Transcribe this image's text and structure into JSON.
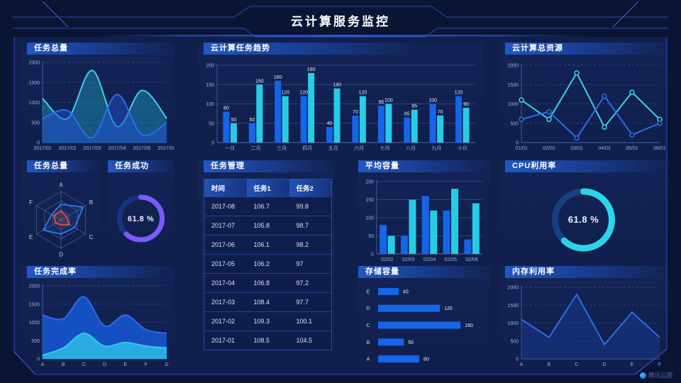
{
  "header": {
    "title": "云计算服务监控"
  },
  "watermark": {
    "label": "腾讯云图"
  },
  "panels": {
    "task_total": {
      "title": "任务总量"
    },
    "task_trend": {
      "title": "云计算任务趋势"
    },
    "cloud_resources": {
      "title": "云计算总资源"
    },
    "task_radar": {
      "title": "任务总量"
    },
    "task_success": {
      "title": "任务成功"
    },
    "task_table": {
      "title": "任务管理"
    },
    "avg_capacity": {
      "title": "平均容量"
    },
    "cpu_usage": {
      "title": "CPU利用率"
    },
    "completion_rate": {
      "title": "任务完成率"
    },
    "storage": {
      "title": "存储容量"
    },
    "memory_usage": {
      "title": "内存利用率"
    }
  },
  "table": {
    "headers": [
      "时间",
      "任务1",
      "任务2"
    ],
    "rows": [
      [
        "2017-08",
        "106.7",
        "99.8"
      ],
      [
        "2017-07",
        "105.8",
        "98.7"
      ],
      [
        "2017-06",
        "106.1",
        "98.2"
      ],
      [
        "2017-05",
        "106.2",
        "97"
      ],
      [
        "2017-04",
        "106.8",
        "97.2"
      ],
      [
        "2017-03",
        "108.4",
        "97.7"
      ],
      [
        "2017-02",
        "109.3",
        "100.1"
      ],
      [
        "2017-01",
        "108.5",
        "104.5"
      ]
    ]
  },
  "colors": {
    "bar_blue": "#1565e8",
    "bar_cyan": "#27cbe6",
    "line_blue": "#2e6de8",
    "line_cyan": "#3bd4e4",
    "gauge_purple": "#7c5afc",
    "gauge_cyan": "#2bd5e8",
    "radar_red": "#f0502e"
  },
  "chart_data": [
    {
      "id": "task-total-trend",
      "type": "area",
      "title": "任务总量",
      "smooth": true,
      "dash": true,
      "ml": 30,
      "x": [
        "2017/01",
        "2017/02",
        "2017/03",
        "2017/04",
        "2017/05",
        "2017/06"
      ],
      "series": [
        {
          "name": "series-cyan",
          "color": "#3bd4e4",
          "fill": "rgba(34,150,196,0.45)",
          "values": [
            1100,
            600,
            1800,
            400,
            1300,
            600
          ]
        },
        {
          "name": "series-blue",
          "color": "#2e6de8",
          "fill": "rgba(28,82,205,0.5)",
          "values": [
            600,
            800,
            120,
            1200,
            200,
            500
          ]
        }
      ],
      "ylim": [
        0,
        2000
      ],
      "yticks": [
        0,
        500,
        1000,
        1500,
        2000
      ]
    },
    {
      "id": "task-trend-bars",
      "type": "bar",
      "title": "云计算任务趋势",
      "labels": true,
      "bw": 9,
      "categories": [
        "一月",
        "二月",
        "三月",
        "四月",
        "五月",
        "六月",
        "七月",
        "八月",
        "九月",
        "十月"
      ],
      "series": [
        {
          "name": "任务1",
          "color": "#1565e8",
          "values": [
            80,
            50,
            160,
            120,
            40,
            70,
            95,
            65,
            100,
            120
          ]
        },
        {
          "name": "任务2",
          "color": "#27cbe6",
          "values": [
            50,
            150,
            120,
            180,
            140,
            120,
            100,
            85,
            70,
            90
          ]
        }
      ],
      "ylim": [
        0,
        200
      ],
      "yticks": [
        0,
        50,
        100,
        150,
        200
      ]
    },
    {
      "id": "cloud-resources-line",
      "type": "line",
      "title": "云计算总资源",
      "markers": true,
      "dash": true,
      "ml": 30,
      "x": [
        "01/01",
        "02/01",
        "03/01",
        "04/01",
        "05/01",
        "06/01"
      ],
      "series": [
        {
          "name": "series-cyan",
          "color": "#3bd4e4",
          "values": [
            1100,
            600,
            1800,
            400,
            1300,
            600
          ]
        },
        {
          "name": "series-blue",
          "color": "#2e6de8",
          "values": [
            600,
            800,
            120,
            1200,
            200,
            500
          ]
        }
      ],
      "ylim": [
        0,
        2000
      ],
      "yticks": [
        0,
        500,
        1000,
        1500,
        2000
      ]
    },
    {
      "id": "task-radar",
      "type": "radar",
      "title": "任务总量",
      "max": 100,
      "axes": [
        "A",
        "B",
        "C",
        "D",
        "E",
        "F"
      ],
      "series": [
        {
          "name": "blue",
          "color": "#2f7df0",
          "fill": "rgba(47,125,240,0.12)",
          "values": [
            55,
            90,
            55,
            50,
            72,
            38
          ]
        },
        {
          "name": "red",
          "color": "#f0502e",
          "fill": "rgba(240,80,46,0.18)",
          "values": [
            32,
            22,
            35,
            18,
            22,
            28
          ]
        }
      ]
    },
    {
      "id": "task-success-gauge",
      "type": "gauge",
      "title": "任务成功",
      "value": 61.8,
      "label": "61.8 %",
      "color": "#7c5afc",
      "track": "#16357e",
      "r": 30,
      "sw": 7,
      "fs": 11
    },
    {
      "id": "avg-capacity-bars",
      "type": "bar",
      "title": "平均容量",
      "labels": false,
      "bw": 10,
      "categories": [
        "02/02",
        "02/03",
        "02/04",
        "02/05",
        "02/06"
      ],
      "series": [
        {
          "name": "series-blue",
          "color": "#1565e8",
          "values": [
            80,
            50,
            160,
            120,
            40
          ]
        },
        {
          "name": "series-cyan",
          "color": "#27cbe6",
          "values": [
            50,
            150,
            120,
            180,
            140
          ]
        }
      ],
      "ylim": [
        0,
        200
      ],
      "yticks": [
        0,
        50,
        100,
        150,
        200
      ]
    },
    {
      "id": "cpu-usage-gauge",
      "type": "gauge",
      "title": "CPU利用率",
      "value": 61.8,
      "label": "61.8 %",
      "color": "#2bd5e8",
      "track": "#16417e",
      "r": 40,
      "sw": 9,
      "fs": 13
    },
    {
      "id": "completion-area",
      "type": "area",
      "title": "任务完成率",
      "smooth": true,
      "dash": true,
      "ml": 30,
      "x": [
        "A",
        "B",
        "C",
        "D",
        "E",
        "F",
        "G"
      ],
      "series": [
        {
          "name": "series-blue",
          "color": "#2e6de8",
          "fill": "rgba(22,88,215,0.85)",
          "values": [
            1200,
            1100,
            1700,
            900,
            1200,
            800,
            700
          ]
        },
        {
          "name": "series-cyan",
          "color": "#35c8ec",
          "fill": "rgba(42,178,226,0.95)",
          "values": [
            100,
            300,
            700,
            350,
            450,
            350,
            300
          ]
        }
      ],
      "ylim": [
        0,
        2000
      ],
      "yticks": [
        0,
        500,
        1000,
        1500,
        2000
      ]
    },
    {
      "id": "storage-hbars",
      "type": "hbar",
      "title": "存储容量",
      "categories": [
        "E",
        "D",
        "C",
        "B",
        "A"
      ],
      "values": [
        40,
        120,
        160,
        50,
        80
      ],
      "xmax": 175,
      "color": "#1565e8"
    },
    {
      "id": "memory-line",
      "type": "line",
      "title": "内存利用率",
      "markers": false,
      "dash": true,
      "ml": 30,
      "x": [
        "A",
        "B",
        "C",
        "D",
        "E",
        "F"
      ],
      "series": [
        {
          "name": "series-blue",
          "color": "#2e6de8",
          "fill": "rgba(25,62,150,0.45)",
          "values": [
            1100,
            600,
            1800,
            400,
            1300,
            600
          ]
        }
      ],
      "ylim": [
        0,
        2000
      ],
      "yticks": [
        0,
        500,
        1000,
        1500,
        2000
      ]
    }
  ]
}
